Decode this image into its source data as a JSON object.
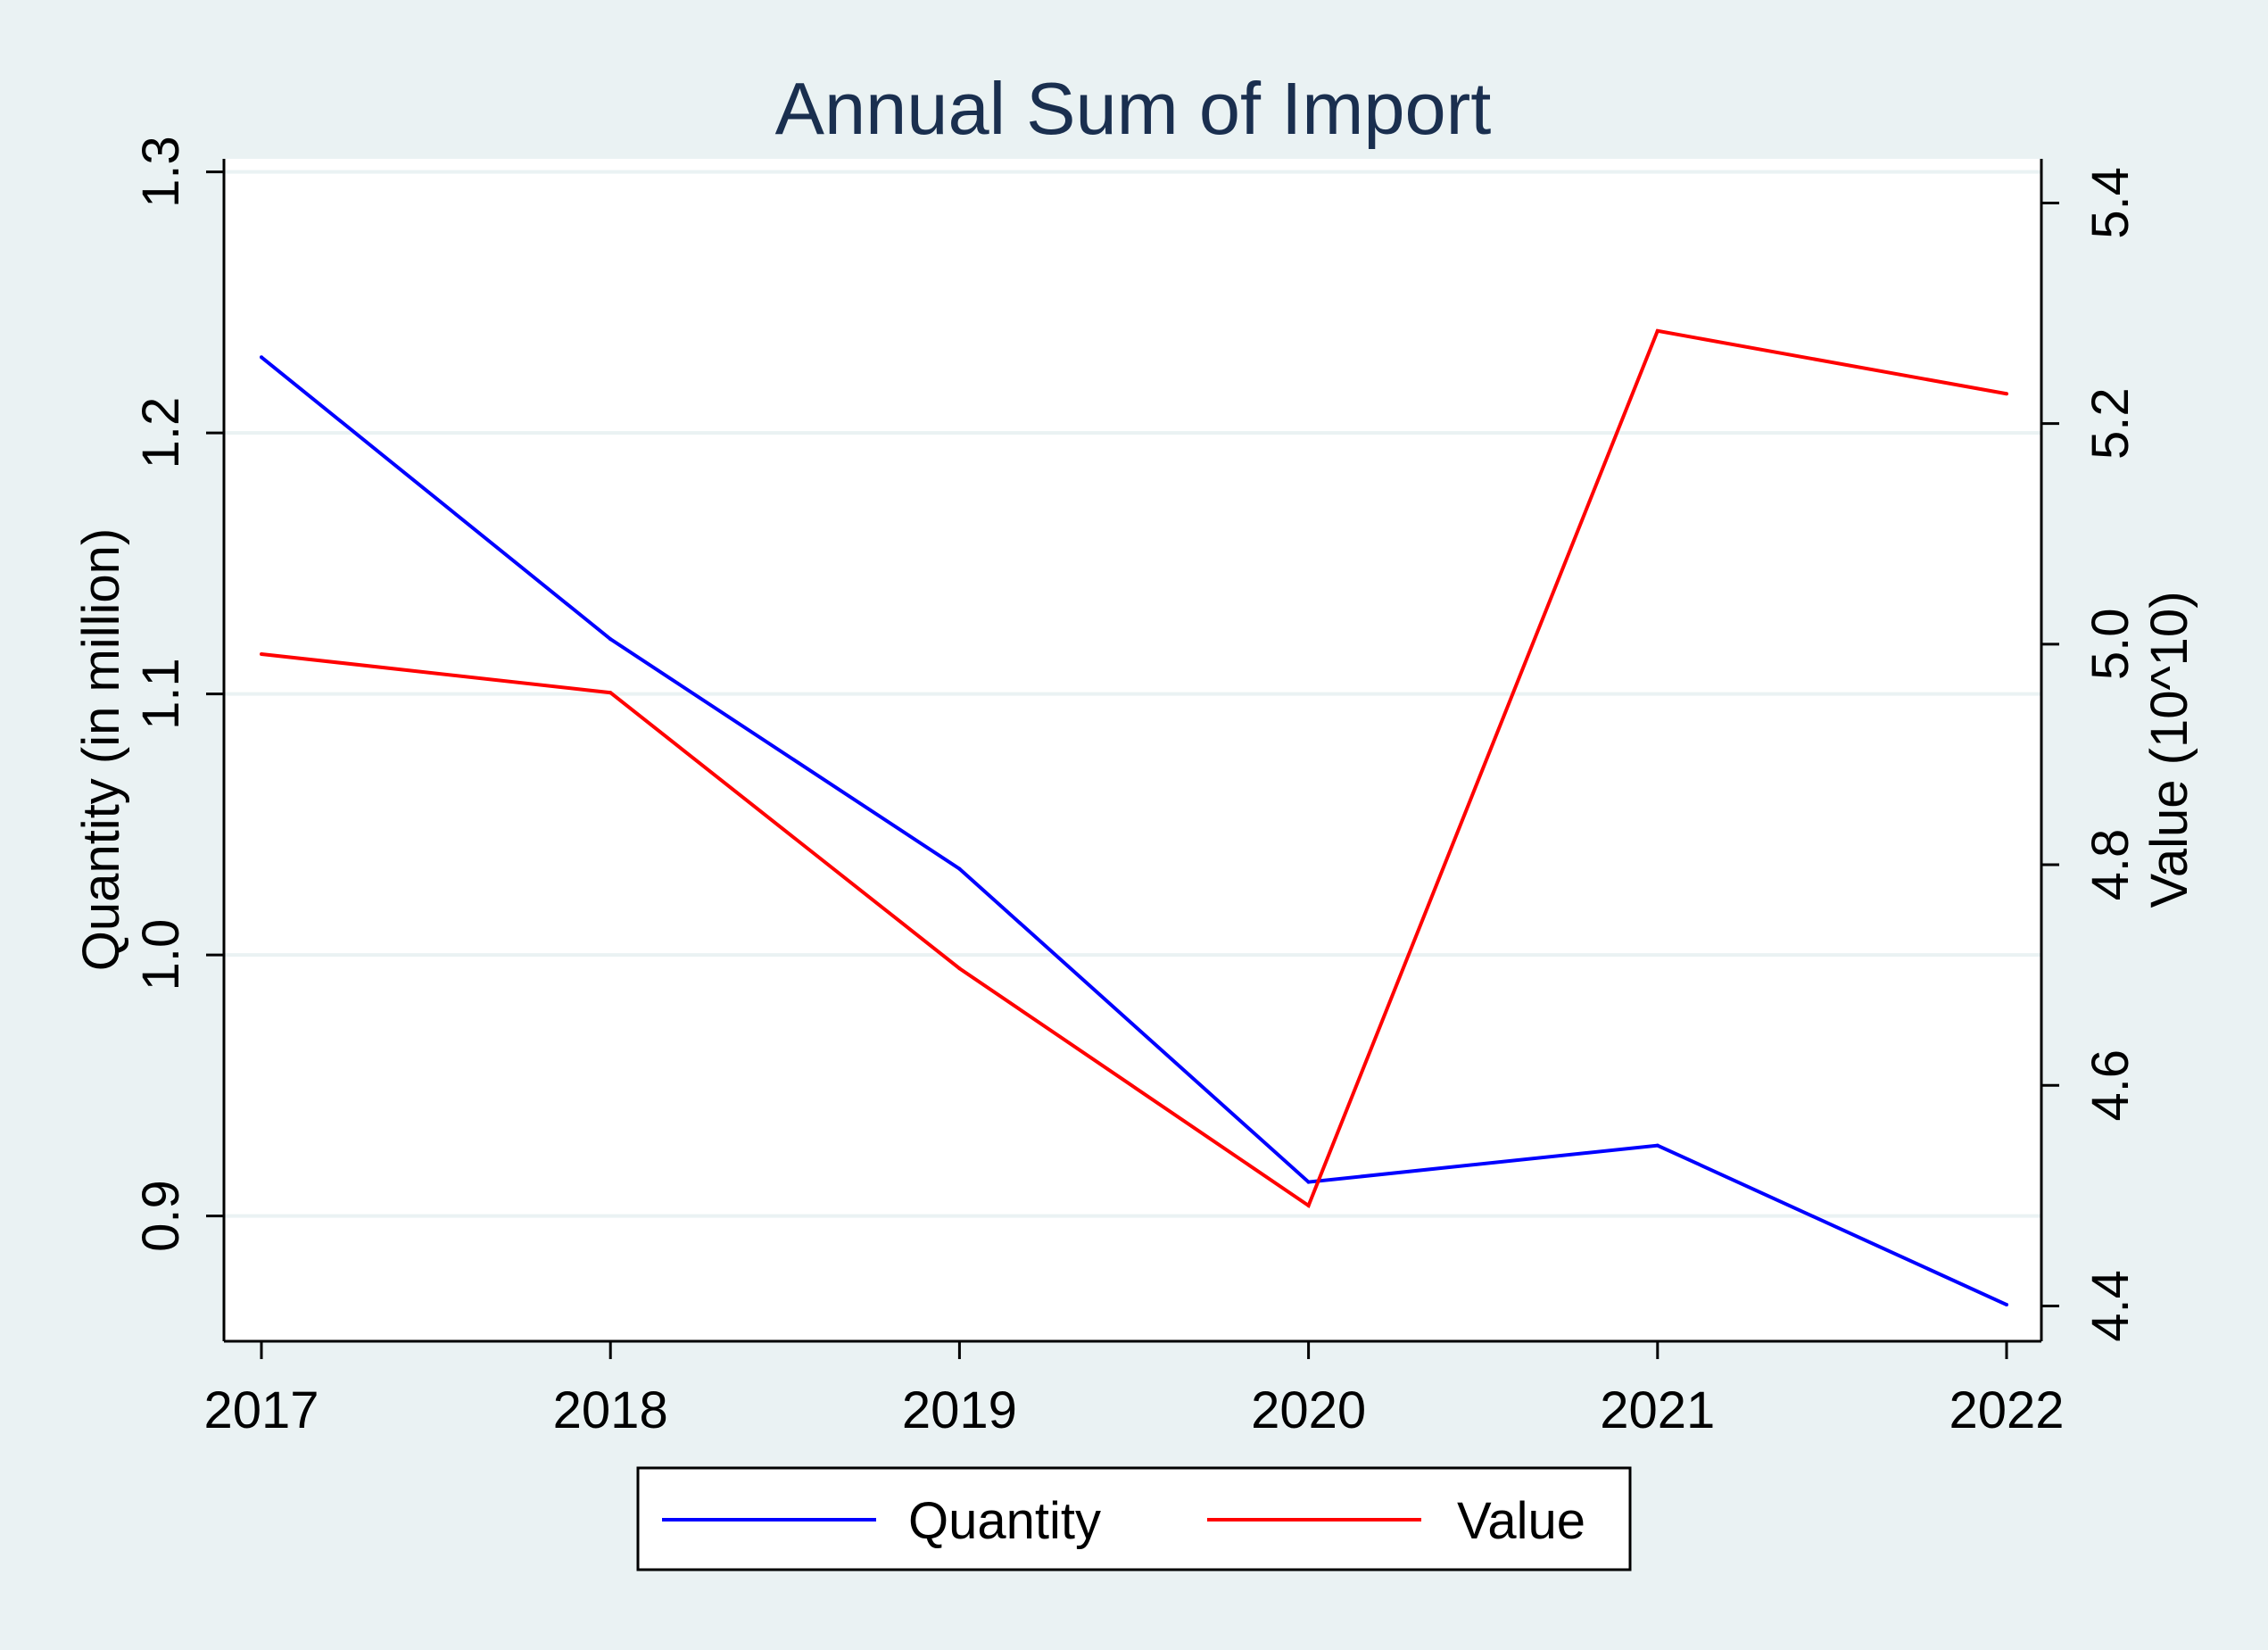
{
  "chart_data": {
    "type": "line",
    "title": "Annual Sum of Import",
    "x": [
      "2017",
      "2018",
      "2019",
      "2020",
      "2021",
      "2022"
    ],
    "y_left": {
      "label": "Quantity (in million)",
      "range": [
        0.852,
        1.305
      ],
      "ticks": [
        "0.9",
        "1.0",
        "1.1",
        "1.2",
        "1.3"
      ]
    },
    "y_right": {
      "label": "Value (10^10)",
      "range": [
        4.368,
        5.44
      ],
      "ticks": [
        "4.4",
        "4.6",
        "4.8",
        "5.0",
        "5.2",
        "5.4"
      ]
    },
    "series": [
      {
        "name": "Quantity",
        "axis": "left",
        "color": "#0000ff",
        "values": [
          1.229,
          1.121,
          1.033,
          0.913,
          0.927,
          0.866
        ]
      },
      {
        "name": "Value",
        "axis": "right",
        "color": "#ff0000",
        "values": [
          4.991,
          4.956,
          4.706,
          4.491,
          5.284,
          5.227
        ]
      }
    ],
    "grid": true,
    "legend_position": "bottom"
  }
}
